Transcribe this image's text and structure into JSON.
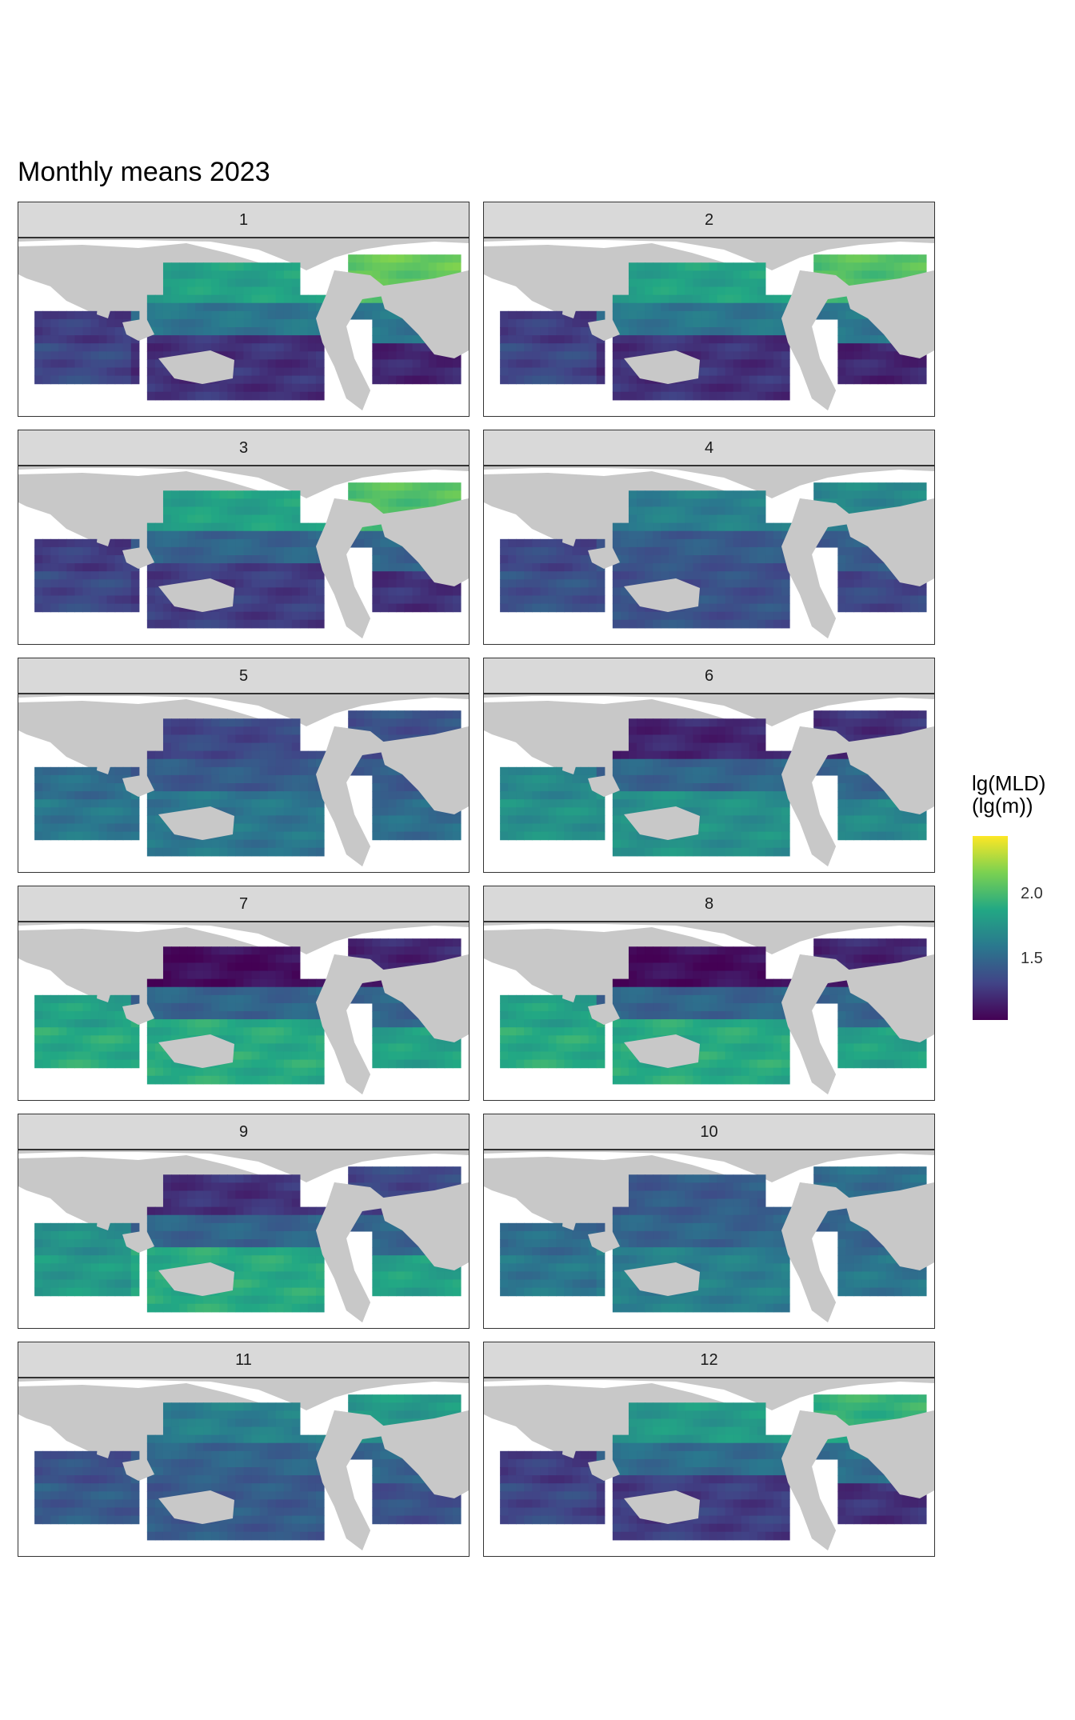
{
  "figure": {
    "title": "Monthly means 2023",
    "panels": [
      "1",
      "2",
      "3",
      "4",
      "5",
      "6",
      "7",
      "8",
      "9",
      "10",
      "11",
      "12"
    ]
  },
  "legend": {
    "title_line1": "lg(MLD)",
    "title_line2": "(lg(m))",
    "ticks": [
      {
        "label": "2.0",
        "value": 2.0
      },
      {
        "label": "1.5",
        "value": 1.5
      }
    ],
    "range": [
      1.15,
      2.55
    ],
    "colormap": "viridis"
  },
  "colors": {
    "land": "#c8c8c8",
    "strip_bg": "#d9d9d9",
    "viridis": [
      "#440154",
      "#414487",
      "#2a788e",
      "#22a884",
      "#7ad151",
      "#fde725"
    ]
  },
  "panel_fields": [
    {
      "north_pacific": 1.95,
      "equatorial": 1.7,
      "south": 1.35,
      "north_atlantic": 2.2,
      "indian": 1.4
    },
    {
      "north_pacific": 1.95,
      "equatorial": 1.7,
      "south": 1.35,
      "north_atlantic": 2.15,
      "indian": 1.4
    },
    {
      "north_pacific": 1.95,
      "equatorial": 1.6,
      "south": 1.4,
      "north_atlantic": 2.15,
      "indian": 1.4
    },
    {
      "north_pacific": 1.75,
      "equatorial": 1.55,
      "south": 1.5,
      "north_atlantic": 1.8,
      "indian": 1.45
    },
    {
      "north_pacific": 1.45,
      "equatorial": 1.55,
      "south": 1.7,
      "north_atlantic": 1.5,
      "indian": 1.65
    },
    {
      "north_pacific": 1.3,
      "equatorial": 1.6,
      "south": 1.85,
      "north_atlantic": 1.35,
      "indian": 1.8
    },
    {
      "north_pacific": 1.2,
      "equatorial": 1.6,
      "south": 2.0,
      "north_atlantic": 1.3,
      "indian": 1.95
    },
    {
      "north_pacific": 1.2,
      "equatorial": 1.6,
      "south": 2.0,
      "north_atlantic": 1.3,
      "indian": 1.95
    },
    {
      "north_pacific": 1.35,
      "equatorial": 1.6,
      "south": 2.0,
      "north_atlantic": 1.45,
      "indian": 1.85
    },
    {
      "north_pacific": 1.55,
      "equatorial": 1.6,
      "south": 1.75,
      "north_atlantic": 1.65,
      "indian": 1.65
    },
    {
      "north_pacific": 1.75,
      "equatorial": 1.6,
      "south": 1.55,
      "north_atlantic": 1.9,
      "indian": 1.5
    },
    {
      "north_pacific": 1.9,
      "equatorial": 1.65,
      "south": 1.4,
      "north_atlantic": 2.05,
      "indian": 1.4
    }
  ]
}
